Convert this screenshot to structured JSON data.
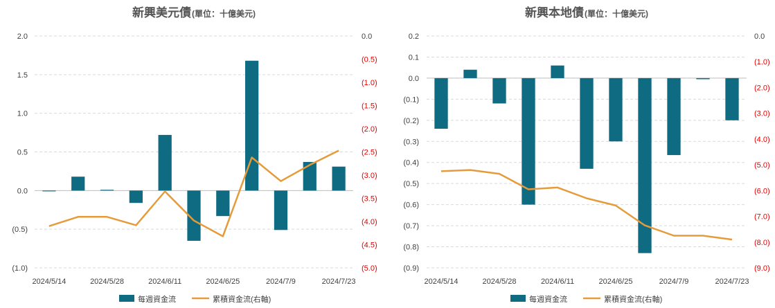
{
  "colors": {
    "bar": "#0e6b82",
    "line": "#e69b3a",
    "negative_tick": "#e00000",
    "tick": "#404040"
  },
  "legend": {
    "bar_label": "每週資金流",
    "line_label": "累積資金流(右軸)"
  },
  "chart_data": [
    {
      "type": "bar+line",
      "title": "新興美元債",
      "subtitle": "(單位：十億美元)",
      "categories": [
        "2024/5/14",
        "2024/5/21",
        "2024/5/28",
        "2024/6/4",
        "2024/6/11",
        "2024/6/18",
        "2024/6/25",
        "2024/7/2",
        "2024/7/9",
        "2024/7/16",
        "2024/7/23"
      ],
      "x_tick_labels": [
        "2024/5/14",
        "",
        "2024/5/28",
        "",
        "2024/6/11",
        "",
        "2024/6/25",
        "",
        "2024/7/9",
        "",
        "2024/7/23"
      ],
      "series": [
        {
          "name": "每週資金流",
          "axis": "left",
          "values": [
            -0.01,
            0.18,
            0.01,
            -0.16,
            0.72,
            -0.65,
            -0.33,
            1.68,
            -0.51,
            0.37,
            0.31
          ]
        },
        {
          "name": "累積資金流(右軸)",
          "axis": "right",
          "values": [
            -4.1,
            -3.9,
            -3.9,
            -4.08,
            -3.35,
            -3.98,
            -4.32,
            -2.62,
            -3.13,
            -2.78,
            -2.47
          ]
        }
      ],
      "ylim_left": [
        -1.0,
        2.0
      ],
      "y_ticks_left": [
        "2.0",
        "1.5",
        "1.0",
        "0.5",
        "0.0",
        "(0.5)",
        "(1.0)"
      ],
      "ylim_right": [
        -5.0,
        0.0
      ],
      "y_ticks_right": [
        "0.0",
        "(0.5)",
        "(1.0)",
        "(1.5)",
        "(2.0)",
        "(2.5)",
        "(3.0)",
        "(3.5)",
        "(4.0)",
        "(4.5)",
        "(5.0)"
      ]
    },
    {
      "type": "bar+line",
      "title": "新興本地債",
      "subtitle": "(單位：十億美元)",
      "categories": [
        "2024/5/14",
        "2024/5/21",
        "2024/5/28",
        "2024/6/4",
        "2024/6/11",
        "2024/6/18",
        "2024/6/25",
        "2024/7/2",
        "2024/7/9",
        "2024/7/16",
        "2024/7/23"
      ],
      "x_tick_labels": [
        "2024/5/14",
        "",
        "2024/5/28",
        "",
        "2024/6/11",
        "",
        "2024/6/25",
        "",
        "2024/7/9",
        "",
        "2024/7/23"
      ],
      "series": [
        {
          "name": "每週資金流",
          "axis": "left",
          "values": [
            -0.24,
            0.04,
            -0.12,
            -0.6,
            0.06,
            -0.43,
            -0.3,
            -0.83,
            -0.365,
            -0.005,
            -0.2
          ]
        },
        {
          "name": "累積資金流(右軸)",
          "axis": "right",
          "values": [
            -5.25,
            -5.2,
            -5.35,
            -5.95,
            -5.88,
            -6.3,
            -6.58,
            -7.35,
            -7.75,
            -7.75,
            -7.9
          ]
        }
      ],
      "ylim_left": [
        -0.9,
        0.2
      ],
      "y_ticks_left": [
        "0.2",
        "0.1",
        "0.0",
        "(0.1)",
        "(0.2)",
        "(0.3)",
        "(0.4)",
        "(0.5)",
        "(0.6)",
        "(0.7)",
        "(0.8)",
        "(0.9)"
      ],
      "ylim_right": [
        -9.0,
        0.0
      ],
      "y_ticks_right": [
        "0.0",
        "(1.0)",
        "(2.0)",
        "(3.0)",
        "(4.0)",
        "(5.0)",
        "(6.0)",
        "(7.0)",
        "(8.0)",
        "(9.0)"
      ]
    }
  ]
}
